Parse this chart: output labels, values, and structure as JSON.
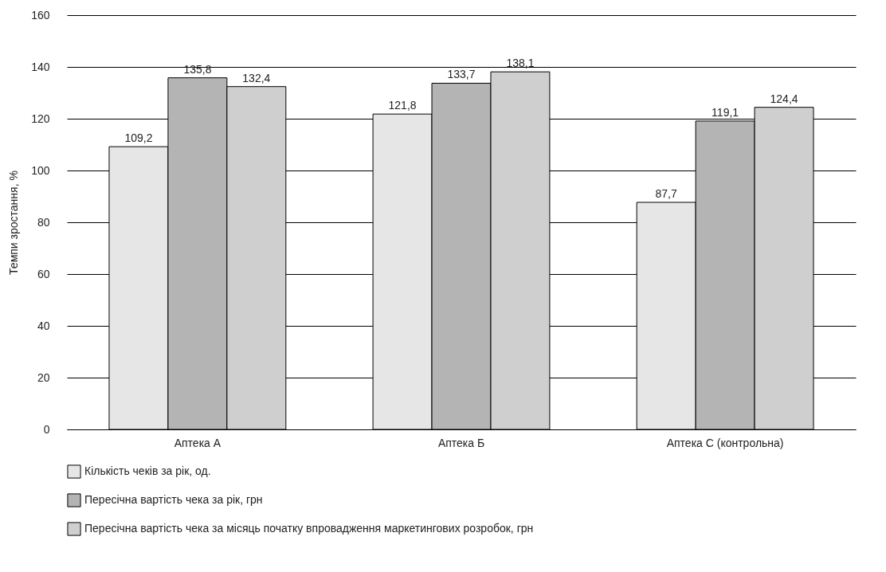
{
  "chart_data": {
    "type": "bar",
    "ylabel": "Темпи зростання, %",
    "categories": [
      "Аптека А",
      "Аптека Б",
      "Аптека С (контрольна)"
    ],
    "series": [
      {
        "name": "Кількість чеків за рік, од.",
        "color": "#e6e6e6",
        "values": [
          109.2,
          121.8,
          87.7
        ],
        "value_labels": [
          "109,2",
          "121,8",
          "87,7"
        ]
      },
      {
        "name": "Пересічна вартість чека за рік, грн",
        "color": "#b4b4b4",
        "values": [
          135.8,
          133.7,
          119.1
        ],
        "value_labels": [
          "135,8",
          "133,7",
          "119,1"
        ]
      },
      {
        "name": "Пересічна вартість чека за місяць початку впровадження маркетингових розробок, грн",
        "color": "#cfcfcf",
        "values": [
          132.4,
          138.1,
          124.4
        ],
        "value_labels": [
          "132,4",
          "138,1",
          "124,4"
        ]
      }
    ],
    "ylim": [
      0,
      160
    ],
    "yticks": [
      0,
      20,
      40,
      60,
      80,
      100,
      120,
      140,
      160
    ],
    "grid": "y",
    "legend": "bottom"
  }
}
